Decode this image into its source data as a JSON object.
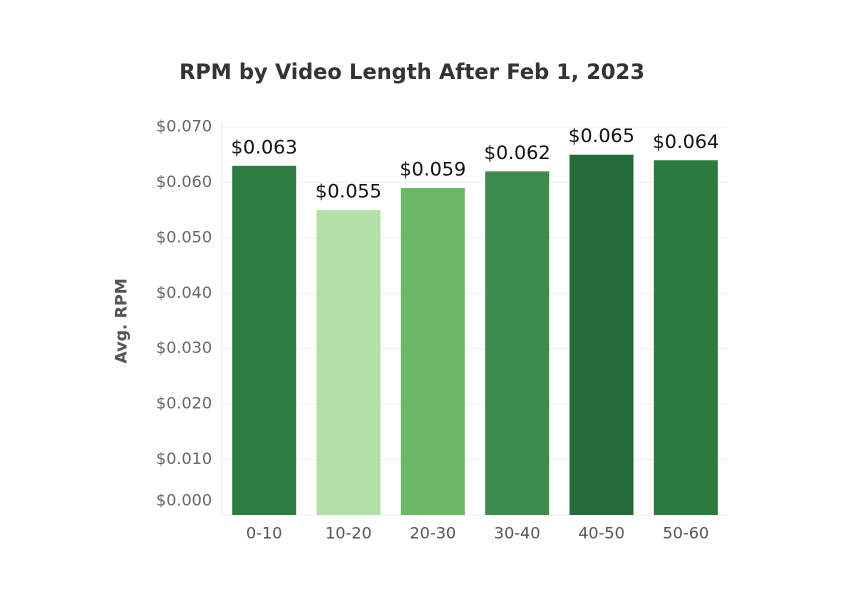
{
  "chart_data": {
    "type": "bar",
    "title": "RPM by Video Length After Feb 1, 2023",
    "y_label": "Avg. RPM",
    "categories": [
      "0-10",
      "10-20",
      "20-30",
      "30-40",
      "40-50",
      "50-60"
    ],
    "values": [
      0.063,
      0.055,
      0.059,
      0.062,
      0.065,
      0.064
    ],
    "value_labels": [
      "$0.063",
      "$0.055",
      "$0.059",
      "$0.062",
      "$0.065",
      "$0.064"
    ],
    "colors": [
      "#2e7d42",
      "#b3e0a6",
      "#6ab766",
      "#3d8c4d",
      "#236b3a",
      "#2b7a3f"
    ],
    "ylim": [
      0,
      0.07
    ],
    "yticks": [
      {
        "value": 0,
        "label": "$0.000"
      },
      {
        "value": 0.01,
        "label": "$0.010"
      },
      {
        "value": 0.02,
        "label": "$0.020"
      },
      {
        "value": 0.03,
        "label": "$0.030"
      },
      {
        "value": 0.04,
        "label": "$0.040"
      },
      {
        "value": 0.05,
        "label": "$0.050"
      },
      {
        "value": 0.06,
        "label": "$0.060"
      },
      {
        "value": 0.07,
        "label": "$0.070"
      }
    ],
    "grid": true
  }
}
